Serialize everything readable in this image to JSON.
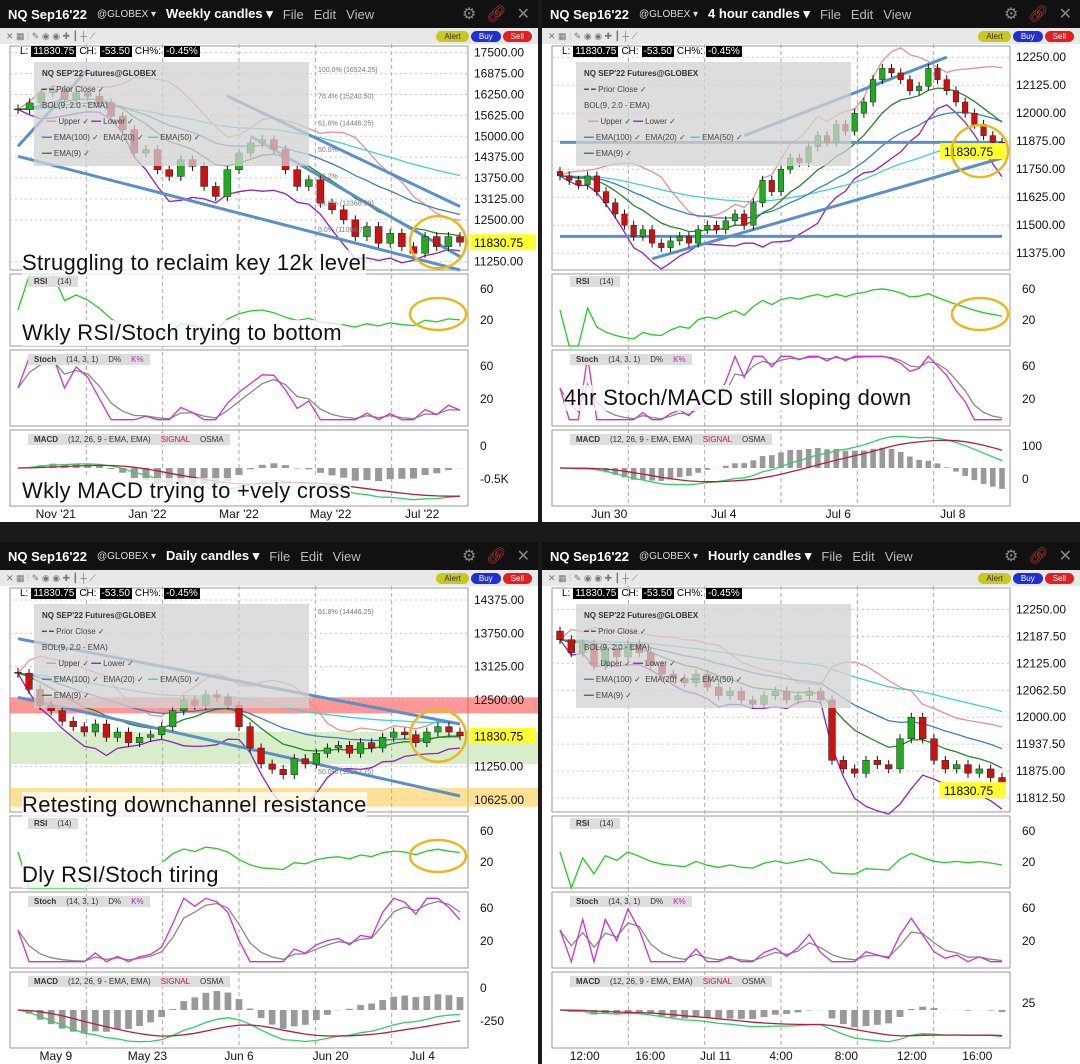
{
  "common": {
    "symbol": "NQ Sep16'22",
    "exchange": "@GLOBEX ▾",
    "menu": [
      "File",
      "Edit",
      "View"
    ],
    "alert": "Alert",
    "buy": "Buy",
    "sell": "Sell",
    "last_label": "L:",
    "last": "11830.75",
    "ch_label": "CH:",
    "ch": "-53.50",
    "chp_label": "CH%:",
    "chp": "-0.45%",
    "legend": {
      "title": "NQ SEP'22 Futures@GLOBEX",
      "prior_close": "Prior Close",
      "bol": "BOL(9, 2.0 - EMA)",
      "upper": "Upper",
      "lower": "Lower",
      "ema100": "EMA(100)",
      "ema20": "EMA(20)",
      "ema50": "EMA(50)",
      "ema9": "EMA(9)"
    },
    "rsi": {
      "name": "RSI",
      "params": "(14)"
    },
    "stoch": {
      "name": "Stoch",
      "params": "(14, 3, 1)",
      "d": "D%",
      "k": "K%"
    },
    "macd": {
      "name": "MACD",
      "params": "(12, 26, 9 - EMA, EMA)",
      "signal": "SIGNAL",
      "osma": "OSMA"
    },
    "colors": {
      "up": "#22aa22",
      "down": "#cc1111",
      "ema9": "#228822",
      "ema100": "#3a7fc0",
      "ema50": "#40d0d0",
      "upper": "#e89090",
      "lower": "#9020c0",
      "trend": "#5a8fc8",
      "circle": "#e8b820",
      "last_bg": "#ffff30"
    },
    "icons": [
      "gear-icon",
      "link-icon",
      "close-icon"
    ]
  },
  "panels": [
    {
      "timeframe": "Weekly candles ▾",
      "price_range": [
        11000,
        17700
      ],
      "price_ticks": [
        "17500.00",
        "16875.00",
        "16250.00",
        "15625.00",
        "15000.00",
        "14375.00",
        "13750.00",
        "13125.00",
        "12500.00",
        "11250.00"
      ],
      "rsi_ticks": [
        "60",
        "20"
      ],
      "stoch_ticks": [
        "60",
        "20"
      ],
      "macd_ticks": [
        "0",
        "-0.5K"
      ],
      "x_labels": [
        "Nov '21",
        "Jan '22",
        "Mar '22",
        "May '22",
        "Jul '22"
      ],
      "fib": [
        "100.0% (16524.25)",
        "78.4% (15240.50)",
        "61.8% (14446.25)",
        "50.0%",
        "38.2%",
        "23.6% (12368.50)",
        "0.0% (11084.75)"
      ],
      "annotations": {
        "price": "Struggling to reclaim key 12k level",
        "rsi": "Wkly RSI/Stoch trying to bottom",
        "macd": "Wkly MACD trying to +vely cross"
      },
      "closes": [
        15800,
        16000,
        16300,
        16400,
        16100,
        16300,
        16200,
        16000,
        15600,
        15200,
        14500,
        14600,
        14000,
        13800,
        14300,
        14100,
        13500,
        13200,
        14000,
        14500,
        14800,
        14900,
        14600,
        14000,
        13500,
        13700,
        13000,
        12800,
        12500,
        12000,
        12300,
        11800,
        12100,
        11700,
        11500,
        12000,
        11700,
        12000,
        11830.75
      ],
      "trendlines": [
        [
          [
            0,
            14700
          ],
          [
            6,
            17000
          ]
        ],
        [
          [
            0,
            14400
          ],
          [
            38,
            11000
          ]
        ],
        [
          [
            18,
            16200
          ],
          [
            38,
            12900
          ]
        ],
        [
          [
            20,
            15000
          ],
          [
            38,
            11400
          ]
        ]
      ]
    },
    {
      "timeframe": "4 hour candles ▾",
      "price_range": [
        11300,
        12300
      ],
      "price_ticks": [
        "12250.00",
        "12125.00",
        "12000.00",
        "11875.00",
        "11750.00",
        "11625.00",
        "11500.00",
        "11375.00"
      ],
      "rsi_ticks": [
        "60",
        "20"
      ],
      "stoch_ticks": [
        "60",
        "20"
      ],
      "macd_ticks": [
        "100",
        "0"
      ],
      "x_labels": [
        "Jun 30",
        "Jul 4",
        "Jul 6",
        "Jul 8"
      ],
      "annotations": {
        "stoch": "4hr Stoch/MACD still sloping down"
      },
      "closes": [
        11720,
        11700,
        11680,
        11720,
        11650,
        11600,
        11550,
        11500,
        11450,
        11480,
        11420,
        11400,
        11430,
        11450,
        11420,
        11480,
        11500,
        11480,
        11520,
        11550,
        11500,
        11600,
        11700,
        11650,
        11750,
        11800,
        11780,
        11850,
        11900,
        11870,
        11950,
        11920,
        12000,
        12050,
        12150,
        12200,
        12180,
        12150,
        12100,
        12120,
        12200,
        12150,
        12100,
        12050,
        12000,
        11950,
        11900,
        11870,
        11830.75
      ],
      "trendlines": [
        [
          [
            10,
            11350
          ],
          [
            48,
            11800
          ]
        ],
        [
          [
            0,
            11870
          ],
          [
            48,
            11870
          ]
        ],
        [
          [
            0,
            11450
          ],
          [
            48,
            11450
          ]
        ],
        [
          [
            20,
            11900
          ],
          [
            42,
            12250
          ]
        ]
      ]
    },
    {
      "timeframe": "Daily candles ▾",
      "price_range": [
        10400,
        14600
      ],
      "price_ticks": [
        "14375.00",
        "13750.00",
        "13125.00",
        "12500.00",
        "11250.00",
        "10625.00"
      ],
      "rsi_ticks": [
        "60",
        "20"
      ],
      "stoch_ticks": [
        "60",
        "20"
      ],
      "macd_ticks": [
        "0",
        "-250"
      ],
      "x_labels": [
        "May 9",
        "May 23",
        "Jun 6",
        "Jun 20",
        "Jul 4"
      ],
      "fib": [
        "61.8% (14446.25)",
        "50.0% (13162.75)"
      ],
      "annotations": {
        "price": "Retesting downchannel resistance",
        "rsi": "Dly RSI/Stoch tiring"
      },
      "zones": [
        {
          "from": 12250,
          "to": 12550,
          "color": "#ff4040"
        },
        {
          "from": 11300,
          "to": 11900,
          "color": "#b8e0a0"
        },
        {
          "from": 10500,
          "to": 10850,
          "color": "#ffc840"
        }
      ],
      "closes": [
        13000,
        12700,
        12400,
        12300,
        12100,
        12000,
        11900,
        12050,
        11800,
        11900,
        11700,
        11800,
        11850,
        12000,
        12300,
        12500,
        12400,
        12600,
        12550,
        12400,
        12000,
        11600,
        11300,
        11200,
        11100,
        11400,
        11300,
        11500,
        11600,
        11650,
        11500,
        11700,
        11600,
        11800,
        11900,
        11850,
        11700,
        11900,
        12000,
        11900,
        11830.75
      ],
      "trendlines": [
        [
          [
            0,
            13650
          ],
          [
            40,
            12050
          ]
        ],
        [
          [
            0,
            12550
          ],
          [
            40,
            10700
          ]
        ]
      ]
    },
    {
      "timeframe": "Hourly candles ▾",
      "price_range": [
        11780,
        12300
      ],
      "price_ticks": [
        "12250.00",
        "12187.50",
        "12125.00",
        "12062.50",
        "12000.00",
        "11937.50",
        "11875.00",
        "11812.50"
      ],
      "rsi_ticks": [
        "60",
        "20"
      ],
      "stoch_ticks": [
        "60",
        "20"
      ],
      "macd_ticks": [
        "25"
      ],
      "x_labels": [
        "12:00",
        "16:00",
        "Jul 11",
        "4:00",
        "8:00",
        "12:00",
        "16:00"
      ],
      "closes": [
        12180,
        12150,
        12170,
        12120,
        12160,
        12140,
        12170,
        12150,
        12120,
        12100,
        12090,
        12080,
        12100,
        12070,
        12050,
        12060,
        12040,
        12030,
        12050,
        12060,
        12040,
        12050,
        12060,
        12040,
        11900,
        11880,
        11870,
        11900,
        11890,
        11880,
        11950,
        12000,
        11950,
        11900,
        11880,
        11890,
        11870,
        11880,
        11860,
        11830.75
      ],
      "trendlines": []
    }
  ]
}
